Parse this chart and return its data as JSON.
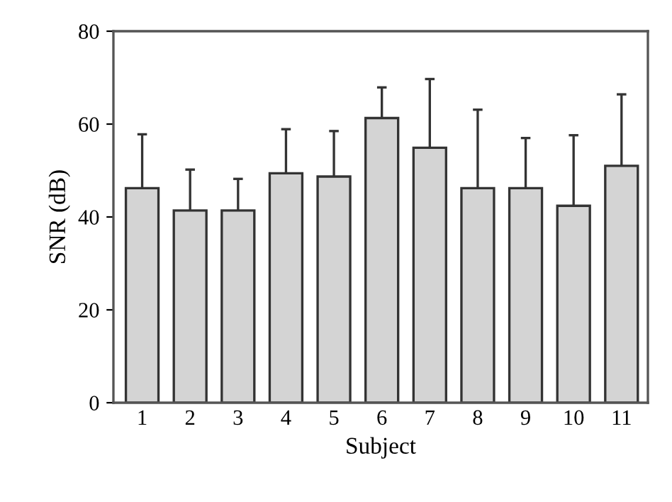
{
  "chart_data": {
    "type": "bar",
    "xlabel": "Subject",
    "ylabel": "SNR (dB)",
    "categories": [
      "1",
      "2",
      "3",
      "4",
      "5",
      "6",
      "7",
      "8",
      "9",
      "10",
      "11"
    ],
    "values": [
      46.2,
      41.4,
      41.4,
      49.4,
      48.7,
      61.3,
      54.9,
      46.2,
      46.2,
      42.4,
      51.0
    ],
    "errors": [
      [
        46.2,
        57.8
      ],
      [
        41.4,
        50.2
      ],
      [
        41.4,
        48.2
      ],
      [
        49.4,
        58.9
      ],
      [
        48.7,
        58.5
      ],
      [
        61.3,
        67.9
      ],
      [
        54.9,
        69.7
      ],
      [
        46.2,
        63.1
      ],
      [
        46.2,
        57.0
      ],
      [
        42.4,
        57.6
      ],
      [
        51.0,
        66.4
      ]
    ],
    "color": "#d4d4d4",
    "ylim": [
      0,
      80
    ],
    "yticks": [
      0,
      20,
      40,
      60,
      80
    ],
    "grid": false,
    "legend": false
  }
}
